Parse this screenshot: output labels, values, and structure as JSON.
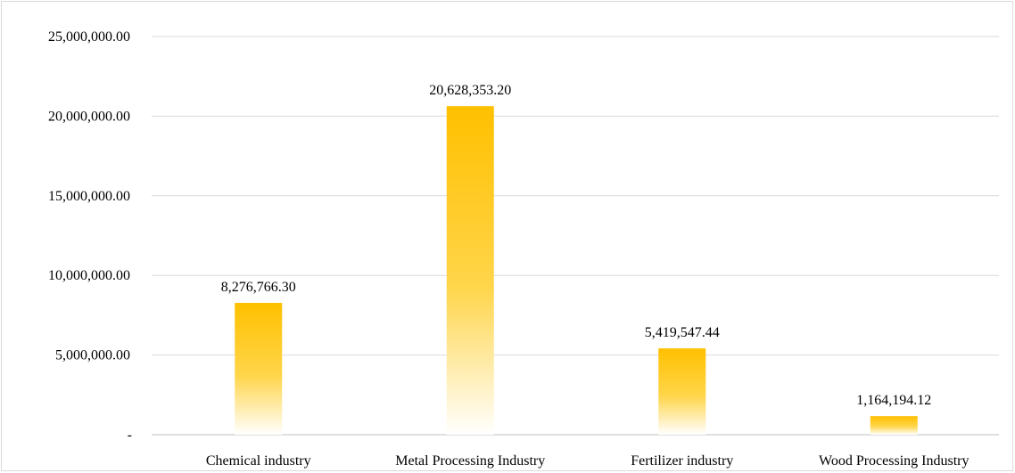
{
  "chart_data": {
    "type": "bar",
    "categories": [
      "Chemical industry",
      "Metal Processing Industry",
      "Fertilizer industry",
      "Wood Processing Industry"
    ],
    "series": [
      {
        "values": [
          8276766.3,
          20628353.2,
          5419547.44,
          1164194.12
        ]
      }
    ],
    "data_labels": [
      "8,276,766.30",
      "20,628,353.20",
      "5,419,547.44",
      "1,164,194.12"
    ],
    "y_ticks": [
      0,
      5000000,
      10000000,
      15000000,
      20000000,
      25000000
    ],
    "y_tick_labels": [
      "-",
      "5,000,000.00",
      "10,000,000.00",
      "15,000,000.00",
      "20,000,000.00",
      "25,000,000.00"
    ],
    "ylim": [
      0,
      25000000
    ],
    "title": "",
    "xlabel": "",
    "ylabel": "",
    "grid": true,
    "legend": "none",
    "bar_color_top": "#ffc000",
    "bar_color_bottom": "#ffffff"
  }
}
